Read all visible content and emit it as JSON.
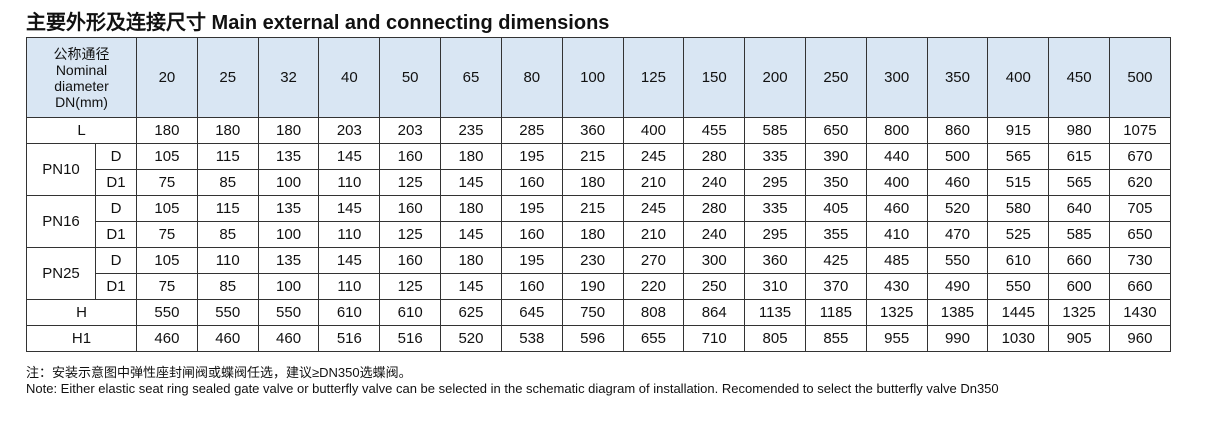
{
  "title": "主要外形及连接尺寸 Main external and connecting dimensions",
  "table": {
    "header": {
      "label": [
        "公称通径",
        "Nominal",
        "diameter",
        "DN(mm)"
      ],
      "sizes": [
        20,
        25,
        32,
        40,
        50,
        65,
        80,
        100,
        125,
        150,
        200,
        250,
        300,
        350,
        400,
        450,
        500
      ]
    },
    "rows": [
      {
        "label": "L",
        "values": [
          180,
          180,
          180,
          203,
          203,
          235,
          285,
          360,
          400,
          455,
          585,
          650,
          800,
          860,
          915,
          980,
          1075
        ]
      },
      {
        "label": "PN10",
        "sub": [
          {
            "label": "D",
            "values": [
              105,
              115,
              135,
              145,
              160,
              180,
              195,
              215,
              245,
              280,
              335,
              390,
              440,
              500,
              565,
              615,
              670
            ]
          },
          {
            "label": "D1",
            "values": [
              75,
              85,
              100,
              110,
              125,
              145,
              160,
              180,
              210,
              240,
              295,
              350,
              400,
              460,
              515,
              565,
              620
            ]
          }
        ]
      },
      {
        "label": "PN16",
        "sub": [
          {
            "label": "D",
            "values": [
              105,
              115,
              135,
              145,
              160,
              180,
              195,
              215,
              245,
              280,
              335,
              405,
              460,
              520,
              580,
              640,
              705
            ]
          },
          {
            "label": "D1",
            "values": [
              75,
              85,
              100,
              110,
              125,
              145,
              160,
              180,
              210,
              240,
              295,
              355,
              410,
              470,
              525,
              585,
              650
            ]
          }
        ]
      },
      {
        "label": "PN25",
        "sub": [
          {
            "label": "D",
            "values": [
              105,
              110,
              135,
              145,
              160,
              180,
              195,
              230,
              270,
              300,
              360,
              425,
              485,
              550,
              610,
              660,
              730
            ]
          },
          {
            "label": "D1",
            "values": [
              75,
              85,
              100,
              110,
              125,
              145,
              160,
              190,
              220,
              250,
              310,
              370,
              430,
              490,
              550,
              600,
              660
            ]
          }
        ]
      },
      {
        "label": "H",
        "values": [
          550,
          550,
          550,
          610,
          610,
          625,
          645,
          750,
          808,
          864,
          1135,
          1185,
          1325,
          1385,
          1445,
          1325,
          1430
        ]
      },
      {
        "label": "H1",
        "values": [
          460,
          460,
          460,
          516,
          516,
          520,
          538,
          596,
          655,
          710,
          805,
          855,
          955,
          990,
          1030,
          905,
          960
        ]
      }
    ]
  },
  "notes": [
    "注：安装示意图中弹性座封闸阀或蝶阀任选，建议≥DN350选蝶阀。",
    "Note: Either elastic seat ring sealed gate valve or butterfly valve can be selected in the schematic diagram of installation. Recomended to select the butterfly valve Dn350"
  ]
}
